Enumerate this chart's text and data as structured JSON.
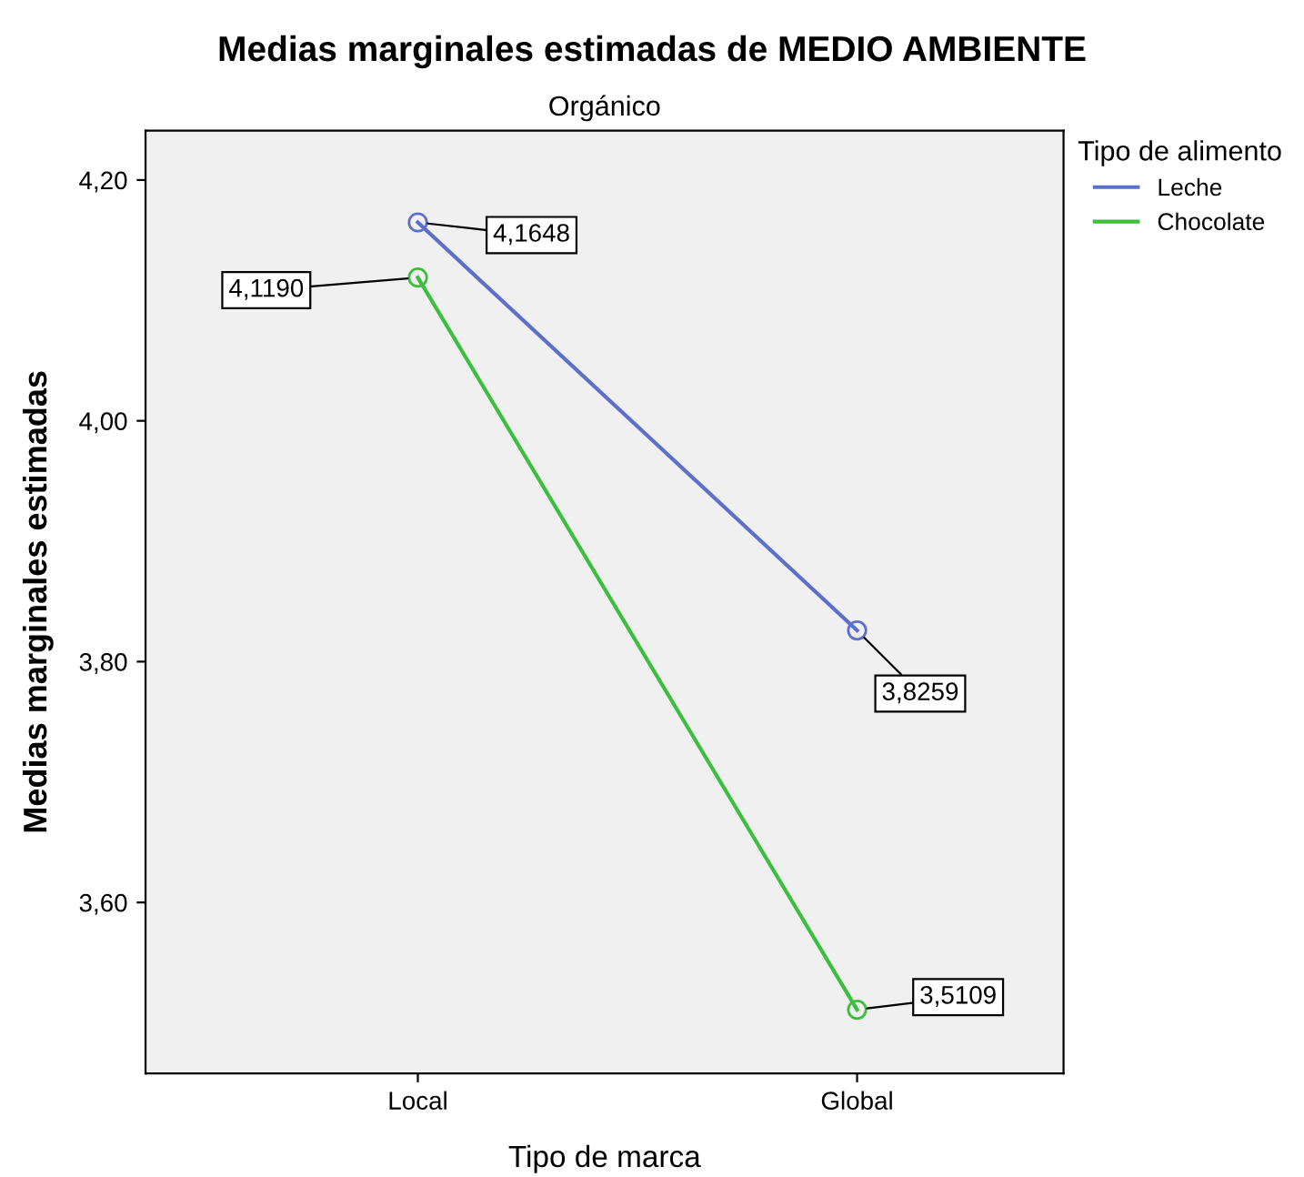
{
  "chart_data": {
    "type": "line",
    "title": "Medias marginales estimadas de MEDIO AMBIENTE",
    "subtitle": "Orgánico",
    "xlabel": "Tipo de marca",
    "ylabel": "Medias marginales estimadas",
    "legend_title": "Tipo de alimento",
    "categories": [
      "Local",
      "Global"
    ],
    "series": [
      {
        "name": "Leche",
        "color": "#5b6fcb",
        "values": [
          4.1648,
          3.8259
        ],
        "value_labels": [
          "4,1648",
          "3,8259"
        ]
      },
      {
        "name": "Chocolate",
        "color": "#3dbf3d",
        "values": [
          4.119,
          3.5109
        ],
        "value_labels": [
          "4,1190",
          "3,5109"
        ]
      }
    ],
    "ylim": [
      3.458,
      4.241
    ],
    "yticks": [
      {
        "value": 3.6,
        "label": "3,60"
      },
      {
        "value": 3.8,
        "label": "3,80"
      },
      {
        "value": 4.0,
        "label": "4,00"
      },
      {
        "value": 4.2,
        "label": "4,20"
      }
    ],
    "grid": false,
    "legend": "right",
    "marker": "circle",
    "line_style": "solid"
  }
}
